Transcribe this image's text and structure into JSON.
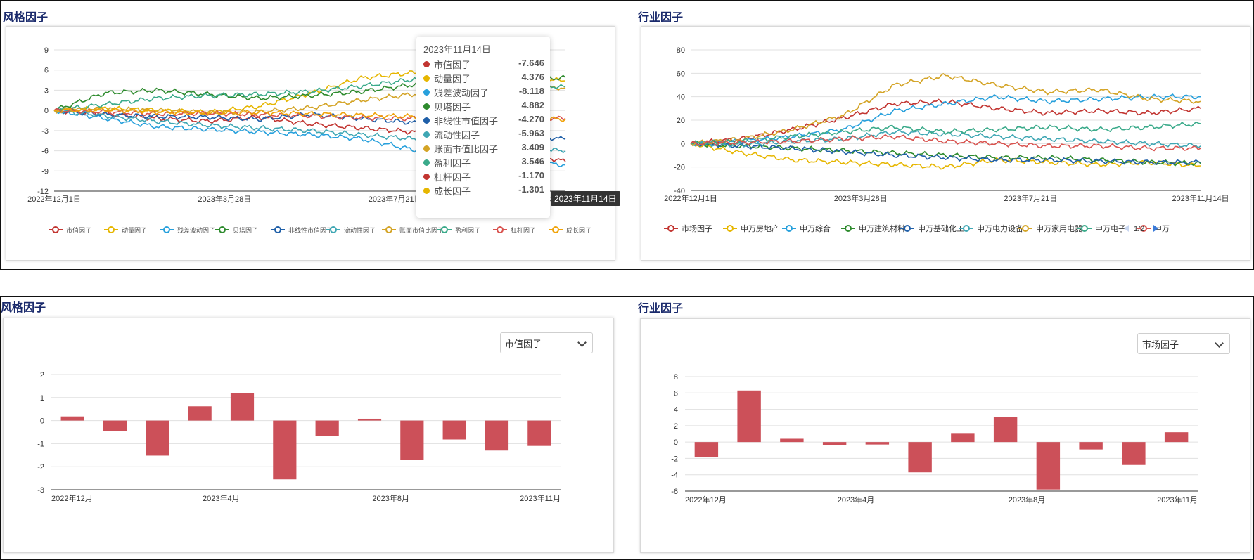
{
  "sections": {
    "top_left_title": "风格因子",
    "top_right_title": "行业因子",
    "bottom_left_title": "风格因子",
    "bottom_right_title": "行业因子"
  },
  "tooltip": {
    "date": "2023年11月14日",
    "items": [
      {
        "name": "市值因子",
        "value": "-7.646",
        "color": "#c23531"
      },
      {
        "name": "动量因子",
        "value": "4.376",
        "color": "#e6b600"
      },
      {
        "name": "残差波动因子",
        "value": "-8.118",
        "color": "#27a0dc"
      },
      {
        "name": "贝塔因子",
        "value": "4.882",
        "color": "#2e8b2e"
      },
      {
        "name": "非线性市值因子",
        "value": "-4.270",
        "color": "#1f5fa8"
      },
      {
        "name": "流动性因子",
        "value": "-5.963",
        "color": "#3fa7b4"
      },
      {
        "name": "账面市值比因子",
        "value": "3.409",
        "color": "#d4a426"
      },
      {
        "name": "盈利因子",
        "value": "3.546",
        "color": "#3aaa8a"
      },
      {
        "name": "杠杆因子",
        "value": "-1.170",
        "color": "#c23531"
      },
      {
        "name": "成长因子",
        "value": "-1.301",
        "color": "#e6b600"
      }
    ],
    "axis_pointer_label": "2023年11月14日"
  },
  "pager": {
    "label": "1/2"
  },
  "bottom_left_select": {
    "value": "市值因子"
  },
  "bottom_right_select": {
    "value": "市场因子"
  },
  "chart_data": [
    {
      "type": "line",
      "title": "风格因子",
      "x_tick_labels": [
        "2022年12月1日",
        "2023年3月28日",
        "2023年7月21日",
        "2023年11月14日"
      ],
      "ylim": [
        -12,
        9
      ],
      "y_ticks": [
        9,
        6,
        3,
        0,
        -3,
        -6,
        -9,
        -12
      ],
      "legend": [
        "市值因子",
        "动量因子",
        "残差波动因子",
        "贝塔因子",
        "非线性市值因子",
        "流动性因子",
        "账面市值比因子",
        "盈利因子",
        "杠杆因子",
        "成长因子"
      ],
      "series": [
        {
          "name": "市值因子",
          "color": "#c23531",
          "values": [
            0,
            -0.5,
            -1.2,
            -1.6,
            -1.0,
            -2.0,
            -2.6,
            -3.2,
            -4.2,
            -6.0,
            -7.6
          ]
        },
        {
          "name": "动量因子",
          "color": "#e6b600",
          "values": [
            0,
            0.3,
            0.0,
            -0.3,
            0.6,
            2.5,
            4.8,
            5.6,
            5.2,
            5.0,
            4.4
          ]
        },
        {
          "name": "残差波动因子",
          "color": "#27a0dc",
          "values": [
            0,
            -1.2,
            -2.4,
            -2.8,
            -3.2,
            -3.6,
            -4.2,
            -5.8,
            -6.8,
            -7.6,
            -8.1
          ]
        },
        {
          "name": "贝塔因子",
          "color": "#2e8b2e",
          "values": [
            0,
            2.6,
            3.0,
            2.4,
            1.8,
            2.2,
            2.8,
            3.8,
            4.2,
            4.4,
            4.9
          ]
        },
        {
          "name": "非线性市值因子",
          "color": "#1f5fa8",
          "values": [
            0,
            -0.6,
            -0.9,
            -1.0,
            -1.3,
            -0.6,
            -1.2,
            -1.8,
            -2.6,
            -3.5,
            -4.3
          ]
        },
        {
          "name": "流动性因子",
          "color": "#3fa7b4",
          "values": [
            0,
            -0.8,
            -1.6,
            -2.2,
            -2.6,
            -3.0,
            -3.6,
            -4.2,
            -4.8,
            -5.6,
            -6.0
          ]
        },
        {
          "name": "账面市值比因子",
          "color": "#d4a426",
          "values": [
            0,
            0.2,
            0.0,
            -0.3,
            -0.2,
            0.4,
            1.5,
            2.4,
            2.9,
            3.2,
            3.4
          ]
        },
        {
          "name": "盈利因子",
          "color": "#3aaa8a",
          "values": [
            0,
            0.9,
            1.8,
            2.2,
            2.4,
            2.8,
            3.6,
            4.6,
            4.2,
            3.8,
            3.5
          ]
        },
        {
          "name": "杠杆因子",
          "color": "#d9534f",
          "values": [
            0,
            -0.2,
            -0.5,
            -0.4,
            -0.6,
            -0.8,
            -1.1,
            -1.2,
            -1.0,
            -1.1,
            -1.2
          ]
        },
        {
          "name": "成长因子",
          "color": "#f0a30a",
          "values": [
            0,
            0.1,
            -0.2,
            -0.4,
            -0.3,
            -0.5,
            -0.7,
            -0.9,
            -1.0,
            -1.2,
            -1.3
          ]
        }
      ]
    },
    {
      "type": "line",
      "title": "行业因子",
      "x_tick_labels": [
        "2022年12月1日",
        "2023年3月28日",
        "2023年7月21日",
        "2023年11月14日"
      ],
      "ylim": [
        -40,
        80
      ],
      "y_ticks": [
        80,
        60,
        40,
        20,
        0,
        -20,
        -40
      ],
      "legend": [
        "市场因子",
        "申万房地产",
        "申万综合",
        "申万建筑材料",
        "申万基础化工",
        "申万电力设备",
        "申万家用电器",
        "申万电子",
        "申万"
      ],
      "series": [
        {
          "name": "市场因子",
          "color": "#c23531",
          "values": [
            0,
            4,
            12,
            22,
            34,
            36,
            30,
            26,
            28,
            26,
            30
          ]
        },
        {
          "name": "申万房地产",
          "color": "#e6b600",
          "values": [
            0,
            -8,
            -14,
            -16,
            -18,
            -20,
            -14,
            -16,
            -18,
            -16,
            -19
          ]
        },
        {
          "name": "申万综合",
          "color": "#27a0dc",
          "values": [
            0,
            2,
            6,
            12,
            28,
            34,
            40,
            36,
            38,
            40,
            40
          ]
        },
        {
          "name": "申万建筑材料",
          "color": "#2e8b2e",
          "values": [
            0,
            -2,
            -4,
            -6,
            -8,
            -10,
            -12,
            -12,
            -14,
            -16,
            -17
          ]
        },
        {
          "name": "申万基础化工",
          "color": "#1f5fa8",
          "values": [
            0,
            -2,
            -4,
            -7,
            -10,
            -12,
            -14,
            -14,
            -15,
            -16,
            -16
          ]
        },
        {
          "name": "申万电力设备",
          "color": "#3fa7b4",
          "values": [
            0,
            -1,
            2,
            4,
            10,
            8,
            6,
            4,
            2,
            0,
            -2
          ]
        },
        {
          "name": "申万家用电器",
          "color": "#d4a426",
          "values": [
            0,
            4,
            12,
            24,
            50,
            58,
            50,
            44,
            46,
            38,
            36
          ]
        },
        {
          "name": "申万电子",
          "color": "#3aaa8a",
          "values": [
            0,
            2,
            6,
            10,
            14,
            10,
            12,
            14,
            12,
            14,
            17
          ]
        },
        {
          "name": "申万",
          "color": "#d9534f",
          "values": [
            0,
            1,
            2,
            4,
            6,
            2,
            0,
            -2,
            -2,
            -4,
            -4
          ]
        }
      ]
    },
    {
      "type": "bar",
      "title": "风格因子",
      "x_tick_labels": [
        "2022年12月",
        "2023年4月",
        "2023年8月",
        "2023年11月"
      ],
      "ylim": [
        -3,
        2
      ],
      "y_ticks": [
        2,
        1,
        0,
        -1,
        -2,
        -3
      ],
      "values": [
        0.18,
        -0.45,
        -1.52,
        0.62,
        1.2,
        -2.55,
        -0.68,
        0.08,
        -1.7,
        -0.82,
        -1.3,
        -1.1
      ],
      "color": "#cc5059"
    },
    {
      "type": "bar",
      "title": "行业因子",
      "x_tick_labels": [
        "2022年12月",
        "2023年4月",
        "2023年8月",
        "2023年11月"
      ],
      "ylim": [
        -6,
        8
      ],
      "y_ticks": [
        8,
        6,
        4,
        2,
        0,
        -2,
        -4,
        -6
      ],
      "values": [
        -1.8,
        6.3,
        0.4,
        -0.4,
        -0.3,
        -3.7,
        1.1,
        3.1,
        -5.8,
        -0.9,
        -2.8,
        1.2
      ],
      "color": "#cc5059"
    }
  ]
}
